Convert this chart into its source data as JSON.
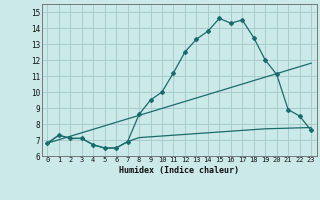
{
  "xlabel": "Humidex (Indice chaleur)",
  "ylabel": "",
  "background_color": "#cce9e9",
  "grid_color": "#aacccc",
  "line_color": "#1a6b6b",
  "xlim": [
    -0.5,
    23.5
  ],
  "ylim": [
    6,
    15.5
  ],
  "xticks": [
    0,
    1,
    2,
    3,
    4,
    5,
    6,
    7,
    8,
    9,
    10,
    11,
    12,
    13,
    14,
    15,
    16,
    17,
    18,
    19,
    20,
    21,
    22,
    23
  ],
  "yticks": [
    6,
    7,
    8,
    9,
    10,
    11,
    12,
    13,
    14,
    15
  ],
  "curve1_x": [
    0,
    1,
    2,
    3,
    4,
    5,
    6,
    7,
    8,
    9,
    10,
    11,
    12,
    13,
    14,
    15,
    16,
    17,
    18,
    19,
    20,
    21,
    22,
    23
  ],
  "curve1_y": [
    6.8,
    7.3,
    7.1,
    7.1,
    6.7,
    6.5,
    6.5,
    6.9,
    8.6,
    9.5,
    10.0,
    11.2,
    12.5,
    13.3,
    13.8,
    14.6,
    14.3,
    14.5,
    13.4,
    12.0,
    11.1,
    8.9,
    8.5,
    7.6
  ],
  "curve2_x": [
    0,
    1,
    2,
    3,
    4,
    5,
    6,
    7,
    8,
    9,
    10,
    11,
    12,
    13,
    14,
    15,
    16,
    17,
    18,
    19,
    20,
    21,
    22,
    23
  ],
  "curve2_y": [
    6.8,
    7.3,
    7.1,
    7.1,
    6.7,
    6.5,
    6.5,
    6.9,
    7.15,
    7.2,
    7.25,
    7.3,
    7.35,
    7.4,
    7.45,
    7.5,
    7.55,
    7.6,
    7.65,
    7.7,
    7.72,
    7.74,
    7.76,
    7.78
  ],
  "curve3_x": [
    0,
    23
  ],
  "curve3_y": [
    6.8,
    11.8
  ]
}
